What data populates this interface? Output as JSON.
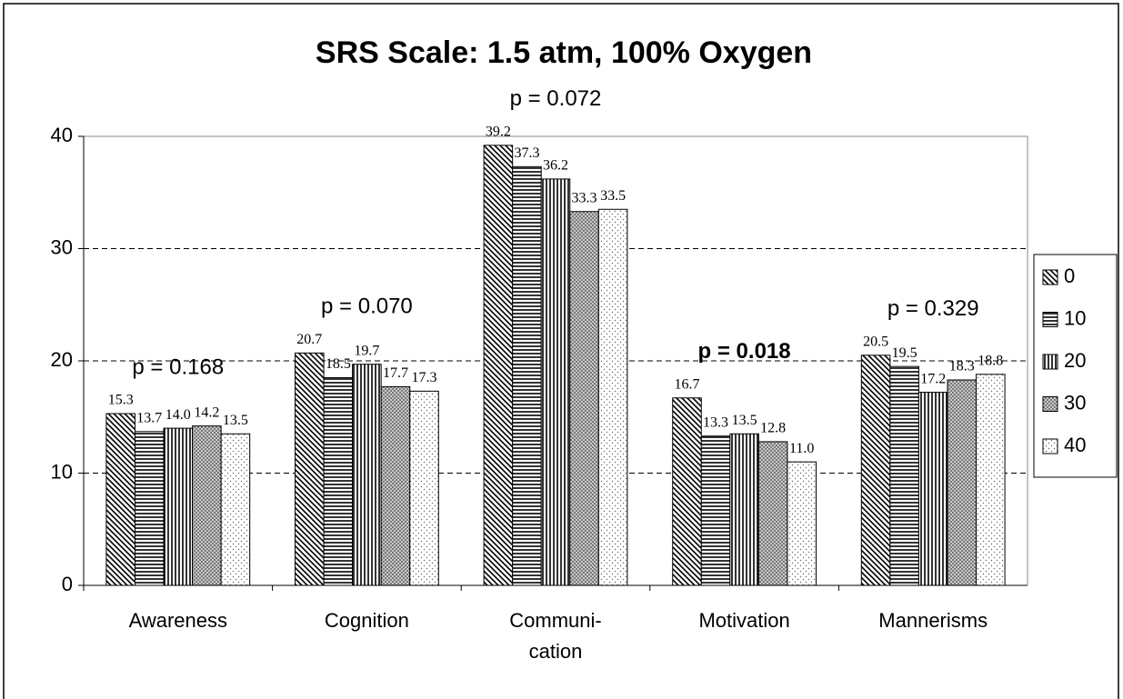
{
  "chart_data": {
    "type": "bar",
    "title": "SRS Scale: 1.5 atm, 100% Oxygen",
    "categories": [
      "Awareness",
      "Cognition",
      "Communi-\ncation",
      "Motivation",
      "Mannerisms"
    ],
    "series": [
      {
        "name": "0",
        "color": "#000000",
        "pattern": "diagonal",
        "values": [
          15.3,
          20.7,
          39.2,
          16.7,
          20.5
        ],
        "value_labels": [
          "15.3",
          "20.7",
          "39.2",
          "16.7",
          "20.5"
        ]
      },
      {
        "name": "10",
        "color": "#000000",
        "pattern": "horizontal",
        "values": [
          13.7,
          18.5,
          37.3,
          13.3,
          19.5
        ],
        "value_labels": [
          "13.7",
          "18.5",
          "37.3",
          "13.3",
          "19.5"
        ]
      },
      {
        "name": "20",
        "color": "#000000",
        "pattern": "vertical",
        "values": [
          14.0,
          19.7,
          36.2,
          13.5,
          17.2
        ],
        "value_labels": [
          "14.0",
          "19.7",
          "36.2",
          "13.5",
          "17.2"
        ]
      },
      {
        "name": "30",
        "color": "#000000",
        "pattern": "crosshatch",
        "values": [
          14.2,
          17.7,
          33.3,
          12.8,
          18.3
        ],
        "value_labels": [
          "14.2",
          "17.7",
          "33.3",
          "12.8",
          "18.3"
        ]
      },
      {
        "name": "40",
        "color": "#000000",
        "pattern": "dots",
        "values": [
          13.5,
          17.3,
          33.5,
          11.0,
          18.8
        ],
        "value_labels": [
          "13.5",
          "17.3",
          "33.5",
          "11.0",
          "18.8"
        ]
      }
    ],
    "annotations": [
      {
        "text": "p = 0.168"
      },
      {
        "text": "p = 0.070"
      },
      {
        "text": "p = 0.072"
      },
      {
        "text": "p = 0.018",
        "bold": true
      },
      {
        "text": "p = 0.329"
      }
    ],
    "ylim": [
      0,
      40
    ],
    "yticks": [
      0,
      10,
      20,
      30,
      40
    ],
    "grid": true,
    "legend": "right"
  }
}
